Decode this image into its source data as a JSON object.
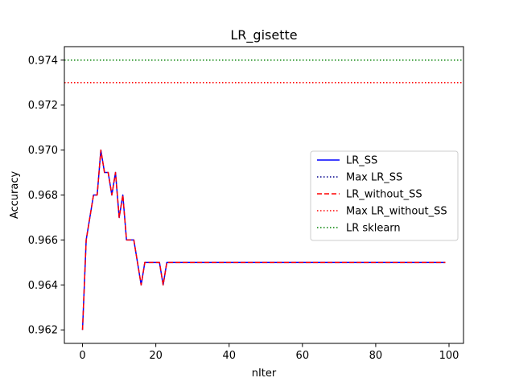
{
  "chart_data": {
    "type": "line",
    "title": "LR_gisette",
    "xlabel": "nIter",
    "ylabel": "Accuracy",
    "xlim": [
      -4.95,
      103.95
    ],
    "ylim": [
      0.9614,
      0.9746
    ],
    "xticks": [
      0,
      20,
      40,
      60,
      80,
      100
    ],
    "xtick_labels": [
      "0",
      "20",
      "40",
      "60",
      "80",
      "100"
    ],
    "yticks": [
      0.962,
      0.964,
      0.966,
      0.968,
      0.97,
      0.972,
      0.974
    ],
    "ytick_labels": [
      "0.962",
      "0.964",
      "0.966",
      "0.968",
      "0.970",
      "0.972",
      "0.974"
    ],
    "grid": false,
    "legend_position": "center-right",
    "x": [
      0,
      1,
      2,
      3,
      4,
      5,
      6,
      7,
      8,
      9,
      10,
      11,
      12,
      13,
      14,
      15,
      16,
      17,
      18,
      19,
      20,
      21,
      22,
      23,
      24,
      25,
      26,
      27,
      28,
      29,
      30,
      31,
      32,
      33,
      34,
      35,
      36,
      37,
      38,
      39,
      40,
      41,
      42,
      43,
      44,
      45,
      46,
      47,
      48,
      49,
      50,
      51,
      52,
      53,
      54,
      55,
      56,
      57,
      58,
      59,
      60,
      61,
      62,
      63,
      64,
      65,
      66,
      67,
      68,
      69,
      70,
      71,
      72,
      73,
      74,
      75,
      76,
      77,
      78,
      79,
      80,
      81,
      82,
      83,
      84,
      85,
      86,
      87,
      88,
      89,
      90,
      91,
      92,
      93,
      94,
      95,
      96,
      97,
      98,
      99
    ],
    "series": [
      {
        "name": "LR_SS",
        "color": "#0000ff",
        "style": "solid",
        "values": [
          0.962,
          0.966,
          0.967,
          0.968,
          0.968,
          0.97,
          0.969,
          0.969,
          0.968,
          0.969,
          0.967,
          0.968,
          0.966,
          0.966,
          0.966,
          0.965,
          0.964,
          0.965,
          0.965,
          0.965,
          0.965,
          0.965,
          0.964,
          0.965,
          0.965,
          0.965,
          0.965,
          0.965,
          0.965,
          0.965,
          0.965,
          0.965,
          0.965,
          0.965,
          0.965,
          0.965,
          0.965,
          0.965,
          0.965,
          0.965,
          0.965,
          0.965,
          0.965,
          0.965,
          0.965,
          0.965,
          0.965,
          0.965,
          0.965,
          0.965,
          0.965,
          0.965,
          0.965,
          0.965,
          0.965,
          0.965,
          0.965,
          0.965,
          0.965,
          0.965,
          0.965,
          0.965,
          0.965,
          0.965,
          0.965,
          0.965,
          0.965,
          0.965,
          0.965,
          0.965,
          0.965,
          0.965,
          0.965,
          0.965,
          0.965,
          0.965,
          0.965,
          0.965,
          0.965,
          0.965,
          0.965,
          0.965,
          0.965,
          0.965,
          0.965,
          0.965,
          0.965,
          0.965,
          0.965,
          0.965,
          0.965,
          0.965,
          0.965,
          0.965,
          0.965,
          0.965,
          0.965,
          0.965,
          0.965,
          0.965
        ]
      },
      {
        "name": "Max LR_SS",
        "color": "#00008b",
        "style": "dotted",
        "hline": 0.973
      },
      {
        "name": "LR_without_SS",
        "color": "#ff0000",
        "style": "dashed",
        "values": [
          0.962,
          0.966,
          0.967,
          0.968,
          0.968,
          0.97,
          0.969,
          0.969,
          0.968,
          0.969,
          0.967,
          0.968,
          0.966,
          0.966,
          0.966,
          0.965,
          0.964,
          0.965,
          0.965,
          0.965,
          0.965,
          0.965,
          0.964,
          0.965,
          0.965,
          0.965,
          0.965,
          0.965,
          0.965,
          0.965,
          0.965,
          0.965,
          0.965,
          0.965,
          0.965,
          0.965,
          0.965,
          0.965,
          0.965,
          0.965,
          0.965,
          0.965,
          0.965,
          0.965,
          0.965,
          0.965,
          0.965,
          0.965,
          0.965,
          0.965,
          0.965,
          0.965,
          0.965,
          0.965,
          0.965,
          0.965,
          0.965,
          0.965,
          0.965,
          0.965,
          0.965,
          0.965,
          0.965,
          0.965,
          0.965,
          0.965,
          0.965,
          0.965,
          0.965,
          0.965,
          0.965,
          0.965,
          0.965,
          0.965,
          0.965,
          0.965,
          0.965,
          0.965,
          0.965,
          0.965,
          0.965,
          0.965,
          0.965,
          0.965,
          0.965,
          0.965,
          0.965,
          0.965,
          0.965,
          0.965,
          0.965,
          0.965,
          0.965,
          0.965,
          0.965,
          0.965,
          0.965,
          0.965,
          0.965,
          0.965
        ]
      },
      {
        "name": "Max LR_without_SS",
        "color": "#ff0000",
        "style": "dotted",
        "hline": 0.973
      },
      {
        "name": "LR sklearn",
        "color": "#008000",
        "style": "dotted",
        "hline": 0.974
      }
    ]
  }
}
